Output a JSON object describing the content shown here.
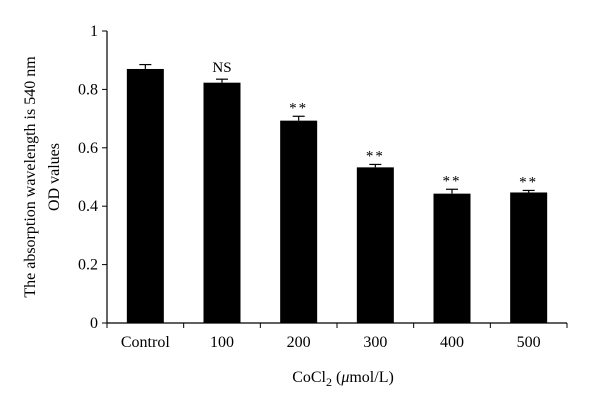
{
  "chart_data": {
    "type": "bar",
    "title": "",
    "categories": [
      "Control",
      "100",
      "200",
      "300",
      "400",
      "500"
    ],
    "values": [
      0.87,
      0.823,
      0.693,
      0.533,
      0.443,
      0.447
    ],
    "errors": [
      0.015,
      0.012,
      0.015,
      0.01,
      0.015,
      0.007
    ],
    "annotations": [
      "",
      "NS",
      "**",
      "**",
      "**",
      "**"
    ],
    "ylim": [
      0,
      1
    ],
    "yticks": [
      "0",
      "0.2",
      "0.4",
      "0.6",
      "0.8",
      "1"
    ],
    "ylabel_line1": "The absorption wavelength is 540 nm",
    "ylabel_line2": "OD values",
    "xlabel_prefix": "CoCl",
    "xlabel_subscript": "2",
    "xlabel_suffix": " (",
    "xlabel_mu": "μ",
    "xlabel_unit": "mol/L)",
    "bar_color": "#000000",
    "grid": false
  }
}
